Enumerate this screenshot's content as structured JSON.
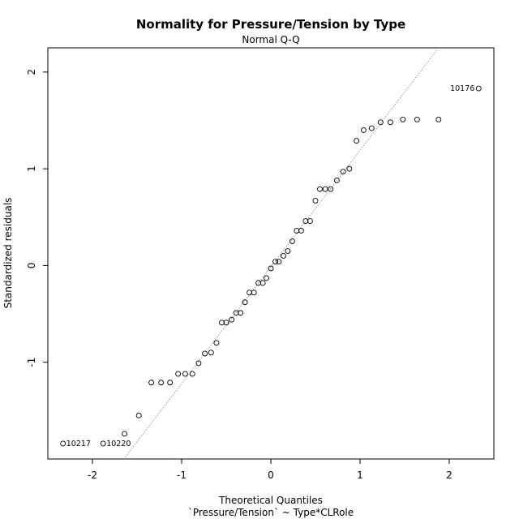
{
  "chart_data": {
    "type": "scatter",
    "title": "Normality for Pressure/Tension by Type",
    "subtitle": "Normal Q-Q",
    "xlabel": "Theoretical Quantiles",
    "xlabel_sub": "`Pressure/Tension` ~ Type*CLRole",
    "ylabel": "Standardized residuals",
    "xlim": [
      -2.5,
      2.5
    ],
    "ylim": [
      -2.0,
      2.25
    ],
    "x_ticks": [
      -2,
      -1,
      0,
      1,
      2
    ],
    "y_ticks": [
      -1,
      0,
      1,
      2
    ],
    "grid": false,
    "reference_line": {
      "points": [
        [
          -1.63,
          -1.98
        ],
        [
          1.87,
          2.24
        ]
      ],
      "style": "dotted",
      "color": "#808080"
    },
    "points": [
      {
        "x": -2.33,
        "y": -1.84,
        "label": "10217"
      },
      {
        "x": -1.88,
        "y": -1.84,
        "label": "10220"
      },
      {
        "x": -1.64,
        "y": -1.74
      },
      {
        "x": -1.48,
        "y": -1.55
      },
      {
        "x": -1.34,
        "y": -1.21
      },
      {
        "x": -1.23,
        "y": -1.21
      },
      {
        "x": -1.13,
        "y": -1.21
      },
      {
        "x": -1.04,
        "y": -1.12
      },
      {
        "x": -0.96,
        "y": -1.12
      },
      {
        "x": -0.88,
        "y": -1.12
      },
      {
        "x": -0.81,
        "y": -1.01
      },
      {
        "x": -0.74,
        "y": -0.91
      },
      {
        "x": -0.67,
        "y": -0.9
      },
      {
        "x": -0.61,
        "y": -0.8
      },
      {
        "x": -0.55,
        "y": -0.59
      },
      {
        "x": -0.5,
        "y": -0.59
      },
      {
        "x": -0.44,
        "y": -0.56
      },
      {
        "x": -0.39,
        "y": -0.49
      },
      {
        "x": -0.34,
        "y": -0.49
      },
      {
        "x": -0.29,
        "y": -0.38
      },
      {
        "x": -0.24,
        "y": -0.28
      },
      {
        "x": -0.19,
        "y": -0.28
      },
      {
        "x": -0.14,
        "y": -0.18
      },
      {
        "x": -0.09,
        "y": -0.18
      },
      {
        "x": -0.05,
        "y": -0.13
      },
      {
        "x": 0.0,
        "y": -0.03
      },
      {
        "x": 0.05,
        "y": 0.04
      },
      {
        "x": 0.09,
        "y": 0.04
      },
      {
        "x": 0.14,
        "y": 0.1
      },
      {
        "x": 0.19,
        "y": 0.15
      },
      {
        "x": 0.24,
        "y": 0.25
      },
      {
        "x": 0.29,
        "y": 0.36
      },
      {
        "x": 0.34,
        "y": 0.36
      },
      {
        "x": 0.39,
        "y": 0.46
      },
      {
        "x": 0.44,
        "y": 0.46
      },
      {
        "x": 0.5,
        "y": 0.67
      },
      {
        "x": 0.55,
        "y": 0.79
      },
      {
        "x": 0.61,
        "y": 0.79
      },
      {
        "x": 0.67,
        "y": 0.79
      },
      {
        "x": 0.74,
        "y": 0.88
      },
      {
        "x": 0.81,
        "y": 0.97
      },
      {
        "x": 0.88,
        "y": 1.0
      },
      {
        "x": 0.96,
        "y": 1.29
      },
      {
        "x": 1.04,
        "y": 1.4
      },
      {
        "x": 1.13,
        "y": 1.42
      },
      {
        "x": 1.23,
        "y": 1.48
      },
      {
        "x": 1.34,
        "y": 1.48
      },
      {
        "x": 1.48,
        "y": 1.51
      },
      {
        "x": 1.64,
        "y": 1.51
      },
      {
        "x": 1.88,
        "y": 1.51
      },
      {
        "x": 2.33,
        "y": 1.83,
        "label": "10176"
      }
    ]
  }
}
